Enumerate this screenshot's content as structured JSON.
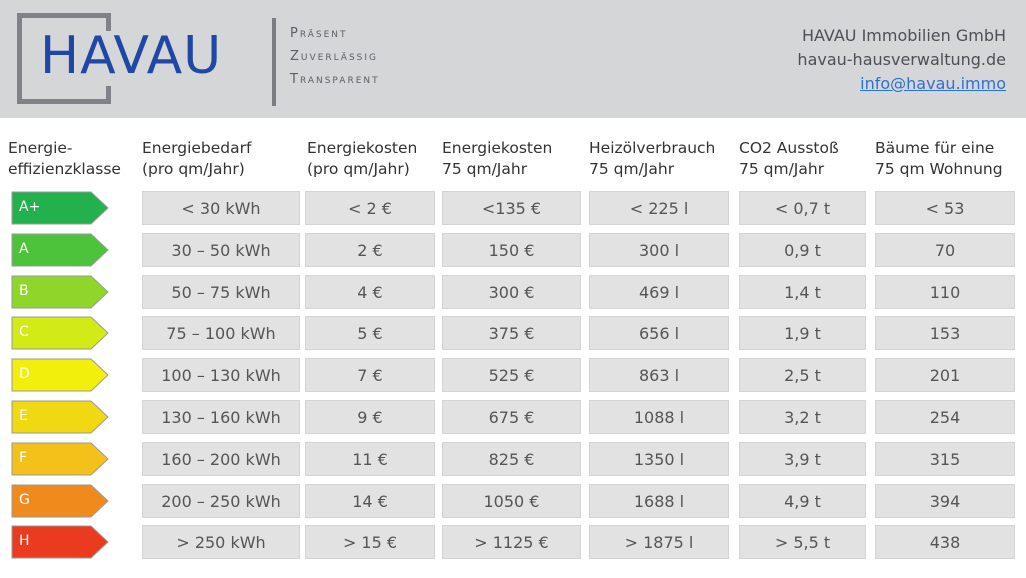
{
  "header": {
    "logo_text": "HAVAU",
    "taglines": [
      "Präsent",
      "Zuverlässig",
      "Transparent"
    ],
    "company_name": "HAVAU Immobilien GmbH",
    "website": "havau-hausverwaltung.de",
    "email": "info@havau.immo"
  },
  "table": {
    "headers": [
      {
        "line1": "Energie-",
        "line2": "effizienzklasse"
      },
      {
        "line1": "Energiebedarf",
        "line2": "(pro qm/Jahr)"
      },
      {
        "line1": "Energiekosten",
        "line2": "(pro qm/Jahr)"
      },
      {
        "line1": "Energiekosten",
        "line2": "75 qm/Jahr"
      },
      {
        "line1": "Heizölverbrauch",
        "line2": "75 qm/Jahr"
      },
      {
        "line1": "CO2 Ausstoß",
        "line2": "75 qm/Jahr"
      },
      {
        "line1": "Bäume für eine",
        "line2": "75 qm Wohnung"
      }
    ],
    "rows": [
      {
        "class": "A+",
        "color": "#22b14c",
        "demand": "< 30 kWh",
        "cost_qm": "< 2 €",
        "cost_75": "<135 €",
        "oil": "< 225 l",
        "co2": "< 0,7 t",
        "trees": "< 53"
      },
      {
        "class": "A",
        "color": "#4cc33a",
        "demand": "30 – 50 kWh",
        "cost_qm": "2 €",
        "cost_75": "150 €",
        "oil": "300 l",
        "co2": "0,9 t",
        "trees": "70"
      },
      {
        "class": "B",
        "color": "#8fd52a",
        "demand": "50 – 75 kWh",
        "cost_qm": "4 €",
        "cost_75": "300 €",
        "oil": "469 l",
        "co2": "1,4 t",
        "trees": "110"
      },
      {
        "class": "C",
        "color": "#d2ea16",
        "demand": "75 – 100 kWh",
        "cost_qm": "5 €",
        "cost_75": "375 €",
        "oil": "656 l",
        "co2": "1,9 t",
        "trees": "153"
      },
      {
        "class": "D",
        "color": "#f3ef0c",
        "demand": "100 – 130 kWh",
        "cost_qm": "7 €",
        "cost_75": "525 €",
        "oil": "863 l",
        "co2": "2,5 t",
        "trees": "201"
      },
      {
        "class": "E",
        "color": "#f0d812",
        "demand": "130 – 160 kWh",
        "cost_qm": "9 €",
        "cost_75": "675 €",
        "oil": "1088 l",
        "co2": "3,2 t",
        "trees": "254"
      },
      {
        "class": "F",
        "color": "#f3c11a",
        "demand": "160 – 200 kWh",
        "cost_qm": "11 €",
        "cost_75": "825 €",
        "oil": "1350 l",
        "co2": "3,9 t",
        "trees": "315"
      },
      {
        "class": "G",
        "color": "#f18a1d",
        "demand": "200 – 250 kWh",
        "cost_qm": "14 €",
        "cost_75": "1050 €",
        "oil": "1688 l",
        "co2": "4,9 t",
        "trees": "394"
      },
      {
        "class": "H",
        "color": "#ea3a1f",
        "demand": "> 250 kWh",
        "cost_qm": "> 15 €",
        "cost_75": "> 1125 €",
        "oil": "> 1875 l",
        "co2": "> 5,5 t",
        "trees": "438"
      }
    ]
  }
}
